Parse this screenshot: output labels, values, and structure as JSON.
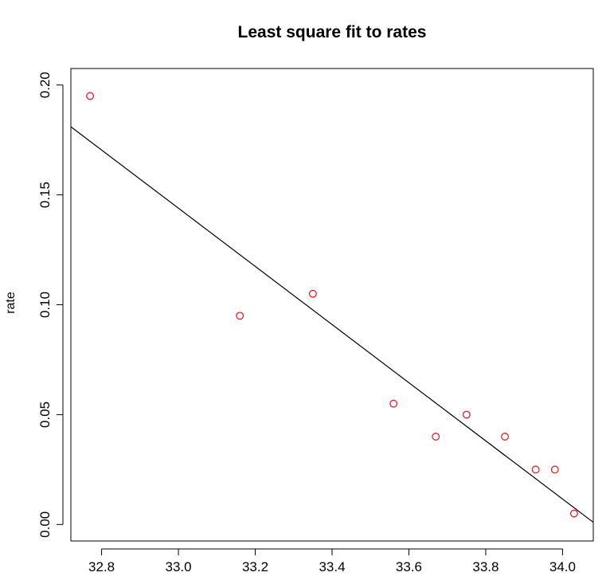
{
  "chart_data": {
    "type": "scatter",
    "title": "Least square fit to rates",
    "xlabel": "",
    "ylabel": "rate",
    "xlim": [
      32.72,
      34.08
    ],
    "ylim": [
      -0.0075,
      0.2075
    ],
    "x_ticks": [
      "32.8",
      "33.0",
      "33.2",
      "33.4",
      "33.6",
      "33.8",
      "34.0"
    ],
    "y_ticks": [
      "0.00",
      "0.05",
      "0.10",
      "0.15",
      "0.20"
    ],
    "grid": false,
    "legend": "none",
    "points": [
      {
        "x": 32.77,
        "y": 0.195
      },
      {
        "x": 33.16,
        "y": 0.095
      },
      {
        "x": 33.35,
        "y": 0.105
      },
      {
        "x": 33.56,
        "y": 0.055
      },
      {
        "x": 33.67,
        "y": 0.04
      },
      {
        "x": 33.75,
        "y": 0.05
      },
      {
        "x": 33.85,
        "y": 0.04
      },
      {
        "x": 33.93,
        "y": 0.025
      },
      {
        "x": 33.98,
        "y": 0.025
      },
      {
        "x": 34.03,
        "y": 0.005
      }
    ],
    "fit_line": {
      "start": {
        "x": 32.72,
        "y": 0.181
      },
      "end": {
        "x": 34.08,
        "y": 0.001
      }
    },
    "colors": {
      "points": "#e8202a",
      "fit_line": "#000000",
      "axes": "#000000"
    }
  }
}
